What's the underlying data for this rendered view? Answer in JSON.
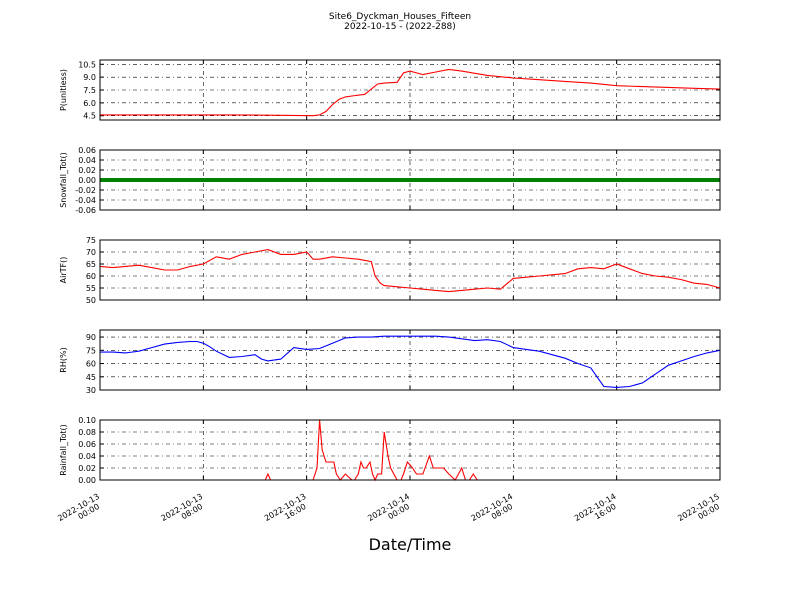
{
  "figure": {
    "title_line1": "Site6_Dyckman_Houses_Fifteen",
    "title_line2": "2022-10-15 - (2022-288)",
    "xlabel": "Date/Time"
  },
  "chart_data": [
    {
      "type": "line",
      "ylabel": "P(unitless)",
      "ylim": [
        4.0,
        11.0
      ],
      "yticks": [
        4.5,
        6.0,
        7.5,
        9.0,
        10.5
      ],
      "yticklabels": [
        "4.5",
        "6.0",
        "7.5",
        "9.0",
        "10.5"
      ],
      "grid": true,
      "series": [
        {
          "color": "#ff0000",
          "x": [
            0,
            6,
            10,
            14,
            16.5,
            17,
            17.5,
            18,
            18.5,
            19,
            19.5,
            20.5,
            21,
            21.5,
            22,
            23,
            23.5,
            24,
            25,
            26,
            27,
            28,
            30,
            32,
            34,
            36,
            38,
            40,
            42,
            44,
            46,
            48
          ],
          "values": [
            4.6,
            4.6,
            4.6,
            4.55,
            4.5,
            4.6,
            5.0,
            5.8,
            6.4,
            6.7,
            6.8,
            7.0,
            7.6,
            8.2,
            8.3,
            8.4,
            9.5,
            9.7,
            9.3,
            9.6,
            9.9,
            9.7,
            9.2,
            8.9,
            8.7,
            8.5,
            8.3,
            8.0,
            7.9,
            7.8,
            7.7,
            7.6
          ]
        }
      ]
    },
    {
      "type": "line",
      "ylabel": "Snowfall_Tot()",
      "ylim": [
        -0.06,
        0.06
      ],
      "yticks": [
        -0.06,
        -0.04,
        -0.02,
        0.0,
        0.02,
        0.04,
        0.06
      ],
      "yticklabels": [
        "-0.06",
        "-0.04",
        "-0.02",
        "0.00",
        "0.02",
        "0.04",
        "0.06"
      ],
      "grid": true,
      "series": [
        {
          "color": "#008000",
          "x": [
            0,
            48
          ],
          "values": [
            0.0,
            0.0
          ]
        }
      ]
    },
    {
      "type": "line",
      "ylabel": "AirTF()",
      "ylim": [
        50,
        75
      ],
      "yticks": [
        50,
        55,
        60,
        65,
        70,
        75
      ],
      "yticklabels": [
        "50",
        "55",
        "60",
        "65",
        "70",
        "75"
      ],
      "grid": true,
      "series": [
        {
          "color": "#ff0000",
          "x": [
            0,
            1,
            2,
            3,
            4,
            5,
            6,
            7,
            8,
            9,
            10,
            11,
            12,
            13,
            14,
            15,
            16,
            16.5,
            17,
            18,
            19,
            20,
            21,
            21.3,
            21.7,
            22,
            23,
            24,
            25,
            26,
            27,
            28,
            29,
            30,
            31,
            32,
            33,
            34,
            35,
            36,
            37,
            38,
            39,
            40,
            41,
            42,
            43,
            44,
            45,
            46,
            47,
            48
          ],
          "values": [
            64,
            63.5,
            64,
            64.5,
            63.5,
            62.5,
            62.5,
            64,
            65,
            68,
            67,
            69,
            70,
            71,
            69,
            69,
            70,
            67,
            67,
            68,
            67.5,
            67,
            66,
            60,
            57,
            56,
            55.5,
            55,
            54.5,
            54,
            53.5,
            54,
            54.5,
            55,
            54.5,
            59,
            59.5,
            60,
            60.5,
            61,
            63,
            63.5,
            63,
            65,
            63,
            61,
            60,
            59.5,
            58.5,
            57,
            56.5,
            55
          ]
        }
      ]
    },
    {
      "type": "line",
      "ylabel": "RH(%)",
      "ylim": [
        30,
        98
      ],
      "yticks": [
        30,
        45,
        60,
        75,
        90
      ],
      "yticklabels": [
        "30",
        "45",
        "60",
        "75",
        "90"
      ],
      "grid": true,
      "series": [
        {
          "color": "#0000ff",
          "x": [
            0,
            1,
            2,
            3,
            4,
            5,
            6,
            7,
            7.5,
            8,
            8.5,
            9,
            10,
            11,
            12,
            12.5,
            13,
            14,
            15,
            16,
            17,
            18,
            19,
            20,
            21,
            22,
            23,
            24,
            25,
            26,
            27,
            28,
            29,
            30,
            31,
            32,
            33,
            34,
            35,
            36,
            37,
            38,
            39,
            40,
            41,
            42,
            43,
            44,
            45,
            46,
            47,
            48
          ],
          "values": [
            73,
            73,
            72,
            74,
            78,
            82,
            84,
            85,
            85,
            83,
            79,
            74,
            67,
            68,
            70,
            65,
            63,
            65,
            78,
            76,
            77,
            83,
            89,
            90,
            90,
            91,
            91,
            91,
            91,
            91,
            90,
            88,
            86,
            87,
            85,
            78,
            76,
            74,
            70,
            66,
            60,
            55,
            34,
            33,
            34,
            38,
            48,
            58,
            63,
            68,
            72,
            75
          ]
        }
      ]
    },
    {
      "type": "line",
      "ylabel": "Rainfall_Tot()",
      "ylim": [
        0,
        0.1
      ],
      "yticks": [
        0.0,
        0.02,
        0.04,
        0.06,
        0.08,
        0.1
      ],
      "yticklabels": [
        "0.00",
        "0.02",
        "0.04",
        "0.06",
        "0.08",
        "0.10"
      ],
      "grid": true,
      "series": [
        {
          "color": "#ff0000",
          "x": [
            0,
            12.8,
            13,
            13.2,
            16.5,
            16.8,
            17,
            17.2,
            17.5,
            17.8,
            18.1,
            18.3,
            18.6,
            19,
            19.5,
            19.7,
            20,
            20.2,
            20.4,
            20.6,
            20.9,
            21.1,
            21.3,
            21.5,
            21.8,
            22,
            22.3,
            22.5,
            23,
            23.3,
            23.5,
            23.8,
            24.2,
            24.5,
            25,
            25.5,
            25.8,
            26,
            26.3,
            26.6,
            27,
            27.5,
            28,
            28.3,
            28.6,
            28.9,
            29.2,
            29.5,
            30,
            48
          ],
          "values": [
            0,
            0,
            0.01,
            0,
            0,
            0.02,
            0.1,
            0.05,
            0.03,
            0.03,
            0.03,
            0.01,
            0,
            0.01,
            0,
            0,
            0.01,
            0.03,
            0.02,
            0.02,
            0.03,
            0.01,
            0,
            0.01,
            0.01,
            0.08,
            0.04,
            0.02,
            0,
            0,
            0.01,
            0.03,
            0.02,
            0.01,
            0.01,
            0.04,
            0.02,
            0.02,
            0.02,
            0.02,
            0.01,
            0,
            0.02,
            0,
            0,
            0.01,
            0,
            0,
            0,
            0
          ]
        }
      ]
    }
  ],
  "xaxis": {
    "xlim": [
      0,
      48
    ],
    "ticks": [
      0,
      8,
      16,
      24,
      32,
      40,
      48
    ],
    "ticklabels": [
      [
        "2022-10-13",
        "00:00"
      ],
      [
        "2022-10-13",
        "08:00"
      ],
      [
        "2022-10-13",
        "16:00"
      ],
      [
        "2022-10-14",
        "00:00"
      ],
      [
        "2022-10-14",
        "08:00"
      ],
      [
        "2022-10-14",
        "16:00"
      ],
      [
        "2022-10-15",
        "00:00"
      ]
    ]
  }
}
